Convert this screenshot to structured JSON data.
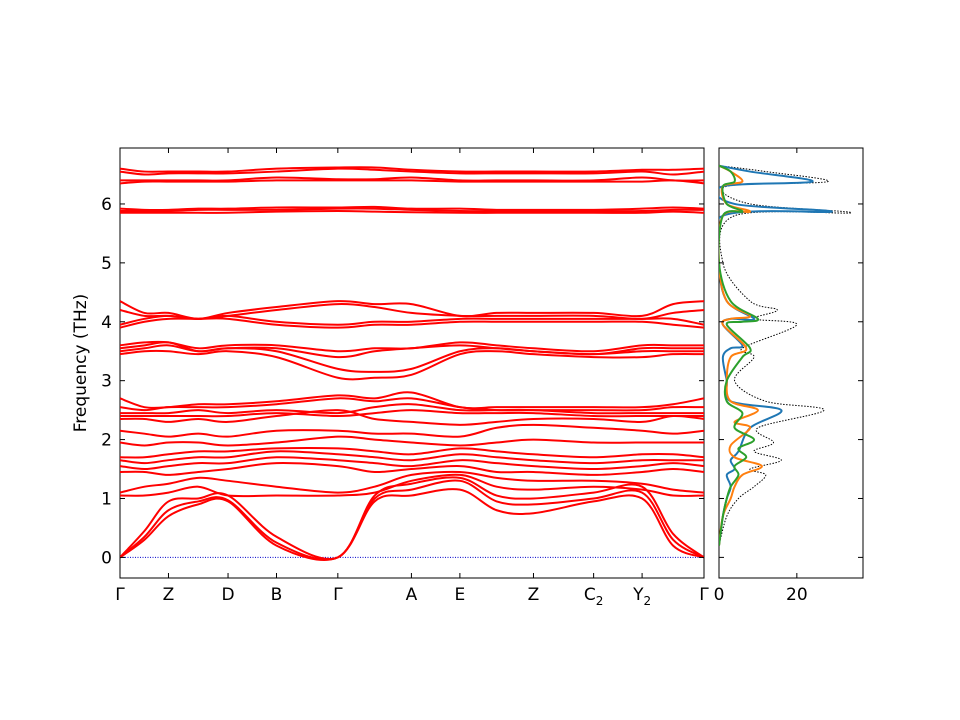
{
  "chart_data": [
    {
      "type": "line",
      "panel": "phonon band structure",
      "title": "",
      "xlabel": "",
      "ylabel": "Frequency (THz)",
      "ylim": [
        -0.35,
        6.95
      ],
      "yticks": [
        0,
        1,
        2,
        3,
        4,
        5,
        6
      ],
      "x_labels": [
        {
          "label": "Γ",
          "pos": 0.0
        },
        {
          "label": "Z",
          "pos": 0.083
        },
        {
          "label": "D",
          "pos": 0.185
        },
        {
          "label": "B",
          "pos": 0.268
        },
        {
          "label": "Γ",
          "pos": 0.373
        },
        {
          "label": "A",
          "pos": 0.499
        },
        {
          "label": "E",
          "pos": 0.582
        },
        {
          "label": "Z",
          "pos": 0.708
        },
        {
          "label": "C",
          "sub": "2",
          "pos": 0.811
        },
        {
          "label": "Y",
          "sub": "2",
          "pos": 0.894
        },
        {
          "label": "Γ",
          "pos": 1.0
        }
      ],
      "band_color": "#ff0000",
      "zero_line_color": "#0000cc",
      "bands": [
        [
          0.0,
          0.3,
          0.7,
          0.9,
          0.95,
          0.2,
          0.0,
          0.95,
          1.05,
          1.15,
          0.8,
          0.75,
          0.95,
          1.0,
          0.2,
          0.0
        ],
        [
          0.0,
          0.35,
          0.8,
          0.95,
          0.97,
          0.25,
          0.0,
          1.0,
          1.15,
          1.3,
          0.95,
          0.9,
          1.0,
          1.1,
          0.3,
          0.0
        ],
        [
          0.0,
          0.45,
          0.95,
          1.0,
          1.05,
          0.35,
          0.0,
          1.05,
          1.25,
          1.35,
          1.05,
          1.0,
          1.1,
          1.2,
          0.4,
          0.0
        ],
        [
          1.05,
          1.05,
          1.1,
          1.2,
          1.05,
          1.05,
          1.05,
          1.1,
          1.3,
          1.4,
          1.2,
          1.15,
          1.2,
          1.15,
          1.05,
          1.05
        ],
        [
          1.1,
          1.2,
          1.25,
          1.35,
          1.3,
          1.2,
          1.1,
          1.2,
          1.4,
          1.45,
          1.35,
          1.3,
          1.3,
          1.25,
          1.15,
          1.1
        ],
        [
          1.45,
          1.45,
          1.4,
          1.45,
          1.5,
          1.6,
          1.55,
          1.45,
          1.5,
          1.55,
          1.45,
          1.45,
          1.4,
          1.45,
          1.5,
          1.45
        ],
        [
          1.55,
          1.5,
          1.55,
          1.6,
          1.6,
          1.7,
          1.65,
          1.6,
          1.55,
          1.65,
          1.6,
          1.55,
          1.5,
          1.55,
          1.6,
          1.55
        ],
        [
          1.65,
          1.6,
          1.65,
          1.7,
          1.7,
          1.8,
          1.75,
          1.7,
          1.65,
          1.75,
          1.7,
          1.65,
          1.6,
          1.65,
          1.65,
          1.65
        ],
        [
          1.7,
          1.7,
          1.75,
          1.8,
          1.8,
          1.85,
          1.85,
          1.8,
          1.75,
          1.85,
          1.8,
          1.75,
          1.7,
          1.75,
          1.75,
          1.7
        ],
        [
          1.95,
          1.9,
          1.95,
          1.95,
          1.9,
          1.95,
          2.05,
          2.0,
          1.95,
          1.9,
          1.95,
          2.0,
          1.95,
          1.95,
          1.95,
          1.95
        ],
        [
          2.15,
          2.1,
          2.05,
          2.1,
          2.05,
          2.15,
          2.15,
          2.1,
          2.1,
          2.05,
          2.2,
          2.25,
          2.2,
          2.15,
          2.1,
          2.15
        ],
        [
          2.35,
          2.35,
          2.3,
          2.35,
          2.3,
          2.4,
          2.5,
          2.35,
          2.3,
          2.25,
          2.3,
          2.35,
          2.35,
          2.3,
          2.4,
          2.35
        ],
        [
          2.4,
          2.4,
          2.4,
          2.4,
          2.4,
          2.45,
          2.4,
          2.45,
          2.5,
          2.45,
          2.45,
          2.45,
          2.4,
          2.4,
          2.4,
          2.4
        ],
        [
          2.45,
          2.45,
          2.45,
          2.5,
          2.45,
          2.5,
          2.45,
          2.55,
          2.6,
          2.5,
          2.5,
          2.5,
          2.45,
          2.45,
          2.45,
          2.45
        ],
        [
          2.55,
          2.5,
          2.55,
          2.55,
          2.55,
          2.6,
          2.7,
          2.65,
          2.7,
          2.55,
          2.5,
          2.5,
          2.5,
          2.5,
          2.55,
          2.55
        ],
        [
          2.7,
          2.55,
          2.55,
          2.6,
          2.6,
          2.65,
          2.75,
          2.7,
          2.8,
          2.55,
          2.55,
          2.55,
          2.55,
          2.55,
          2.6,
          2.7
        ],
        [
          3.45,
          3.5,
          3.5,
          3.45,
          3.5,
          3.4,
          3.05,
          3.05,
          3.1,
          3.45,
          3.5,
          3.45,
          3.4,
          3.4,
          3.45,
          3.45
        ],
        [
          3.5,
          3.55,
          3.6,
          3.5,
          3.55,
          3.5,
          3.2,
          3.15,
          3.2,
          3.5,
          3.55,
          3.5,
          3.45,
          3.5,
          3.5,
          3.5
        ],
        [
          3.55,
          3.6,
          3.65,
          3.5,
          3.55,
          3.55,
          3.4,
          3.5,
          3.55,
          3.6,
          3.55,
          3.5,
          3.45,
          3.55,
          3.55,
          3.55
        ],
        [
          3.6,
          3.65,
          3.65,
          3.55,
          3.6,
          3.6,
          3.5,
          3.55,
          3.55,
          3.65,
          3.6,
          3.55,
          3.5,
          3.6,
          3.6,
          3.6
        ],
        [
          3.9,
          4.0,
          4.05,
          4.05,
          4.05,
          3.95,
          3.9,
          3.95,
          3.95,
          4.0,
          4.0,
          4.0,
          4.0,
          4.0,
          3.95,
          3.9
        ],
        [
          3.95,
          4.05,
          4.1,
          4.05,
          4.1,
          4.0,
          3.95,
          4.0,
          4.0,
          4.05,
          4.05,
          4.05,
          4.05,
          4.05,
          4.05,
          3.95
        ],
        [
          4.2,
          4.1,
          4.1,
          4.05,
          4.1,
          4.2,
          4.3,
          4.25,
          4.15,
          4.1,
          4.1,
          4.1,
          4.1,
          4.05,
          4.15,
          4.2
        ],
        [
          4.35,
          4.15,
          4.15,
          4.05,
          4.15,
          4.25,
          4.35,
          4.3,
          4.3,
          4.1,
          4.15,
          4.15,
          4.15,
          4.1,
          4.3,
          4.35
        ],
        [
          5.85,
          5.85,
          5.85,
          5.85,
          5.85,
          5.87,
          5.88,
          5.87,
          5.86,
          5.85,
          5.85,
          5.85,
          5.85,
          5.85,
          5.87,
          5.85
        ],
        [
          5.88,
          5.88,
          5.88,
          5.9,
          5.9,
          5.9,
          5.92,
          5.92,
          5.9,
          5.88,
          5.88,
          5.88,
          5.88,
          5.88,
          5.9,
          5.9
        ],
        [
          5.92,
          5.9,
          5.9,
          5.92,
          5.92,
          5.94,
          5.94,
          5.95,
          5.92,
          5.92,
          5.9,
          5.9,
          5.9,
          5.92,
          5.94,
          5.92
        ],
        [
          6.35,
          6.38,
          6.38,
          6.38,
          6.38,
          6.4,
          6.4,
          6.4,
          6.4,
          6.38,
          6.38,
          6.38,
          6.38,
          6.38,
          6.4,
          6.35
        ],
        [
          6.4,
          6.4,
          6.4,
          6.4,
          6.4,
          6.45,
          6.42,
          6.42,
          6.45,
          6.4,
          6.4,
          6.4,
          6.4,
          6.45,
          6.4,
          6.4
        ],
        [
          6.55,
          6.5,
          6.52,
          6.52,
          6.52,
          6.55,
          6.6,
          6.58,
          6.55,
          6.52,
          6.52,
          6.52,
          6.52,
          6.55,
          6.5,
          6.55
        ],
        [
          6.6,
          6.55,
          6.55,
          6.55,
          6.55,
          6.6,
          6.62,
          6.62,
          6.58,
          6.55,
          6.55,
          6.55,
          6.55,
          6.58,
          6.58,
          6.6
        ]
      ],
      "band_sample_pos": [
        0.0,
        0.042,
        0.083,
        0.134,
        0.185,
        0.268,
        0.373,
        0.436,
        0.499,
        0.582,
        0.645,
        0.708,
        0.811,
        0.894,
        0.947,
        1.0
      ]
    },
    {
      "type": "line",
      "panel": "density of states",
      "title": "",
      "xlabel": "",
      "ylabel": "",
      "xlim": [
        0,
        37
      ],
      "xticks": [
        0,
        20
      ],
      "series": [
        {
          "color": "#000000",
          "style": "dotted",
          "x": [
            0,
            2,
            5,
            9,
            12,
            8,
            16,
            9,
            14,
            10,
            27,
            12,
            4,
            9,
            6,
            20,
            9,
            15,
            8,
            1,
            4,
            34,
            8,
            2,
            28,
            12,
            0
          ],
          "y": [
            0.2,
            0.7,
            1.0,
            1.2,
            1.4,
            1.5,
            1.65,
            1.8,
            1.95,
            2.2,
            2.5,
            2.65,
            3.0,
            3.4,
            3.55,
            3.95,
            4.05,
            4.2,
            4.35,
            5.0,
            5.8,
            5.85,
            6.0,
            6.3,
            6.38,
            6.55,
            6.65
          ]
        },
        {
          "color": "#1f77b4",
          "style": "solid",
          "x": [
            0,
            1,
            2,
            3,
            2,
            4,
            3,
            5,
            8,
            16,
            3,
            2,
            1,
            3,
            6,
            1,
            3,
            9,
            2,
            0,
            1,
            29,
            4,
            1,
            24,
            8,
            0
          ],
          "y": [
            0.2,
            0.7,
            1.0,
            1.2,
            1.4,
            1.5,
            1.65,
            1.8,
            2.2,
            2.5,
            2.65,
            3.0,
            3.4,
            3.55,
            3.6,
            3.95,
            4.05,
            4.05,
            4.35,
            5.0,
            5.8,
            5.87,
            6.0,
            6.3,
            6.38,
            6.55,
            6.65
          ]
        },
        {
          "color": "#ff7f0e",
          "style": "solid",
          "x": [
            0,
            1,
            3,
            4,
            6,
            11,
            4,
            3,
            8,
            4,
            10,
            3,
            2,
            3,
            7,
            1,
            3,
            8,
            2,
            0,
            1,
            8,
            2,
            1,
            6,
            3,
            0
          ],
          "y": [
            0.2,
            0.7,
            1.0,
            1.2,
            1.4,
            1.55,
            1.7,
            1.9,
            2.2,
            2.3,
            2.5,
            2.65,
            3.0,
            3.4,
            3.55,
            3.95,
            4.05,
            4.1,
            4.35,
            5.0,
            5.8,
            5.87,
            6.0,
            6.3,
            6.38,
            6.55,
            6.65
          ]
        },
        {
          "color": "#2ca02c",
          "style": "solid",
          "x": [
            0,
            1,
            2,
            3,
            5,
            4,
            7,
            5,
            9,
            4,
            6,
            2,
            2,
            6,
            8,
            2,
            6,
            10,
            3,
            0,
            1,
            6,
            2,
            1,
            4,
            3,
            0
          ],
          "y": [
            0.2,
            0.7,
            1.0,
            1.2,
            1.4,
            1.55,
            1.7,
            1.85,
            2.0,
            2.2,
            2.45,
            2.65,
            3.0,
            3.4,
            3.55,
            3.95,
            4.0,
            4.05,
            4.35,
            5.0,
            5.8,
            5.87,
            6.0,
            6.3,
            6.38,
            6.55,
            6.65
          ]
        }
      ]
    }
  ]
}
